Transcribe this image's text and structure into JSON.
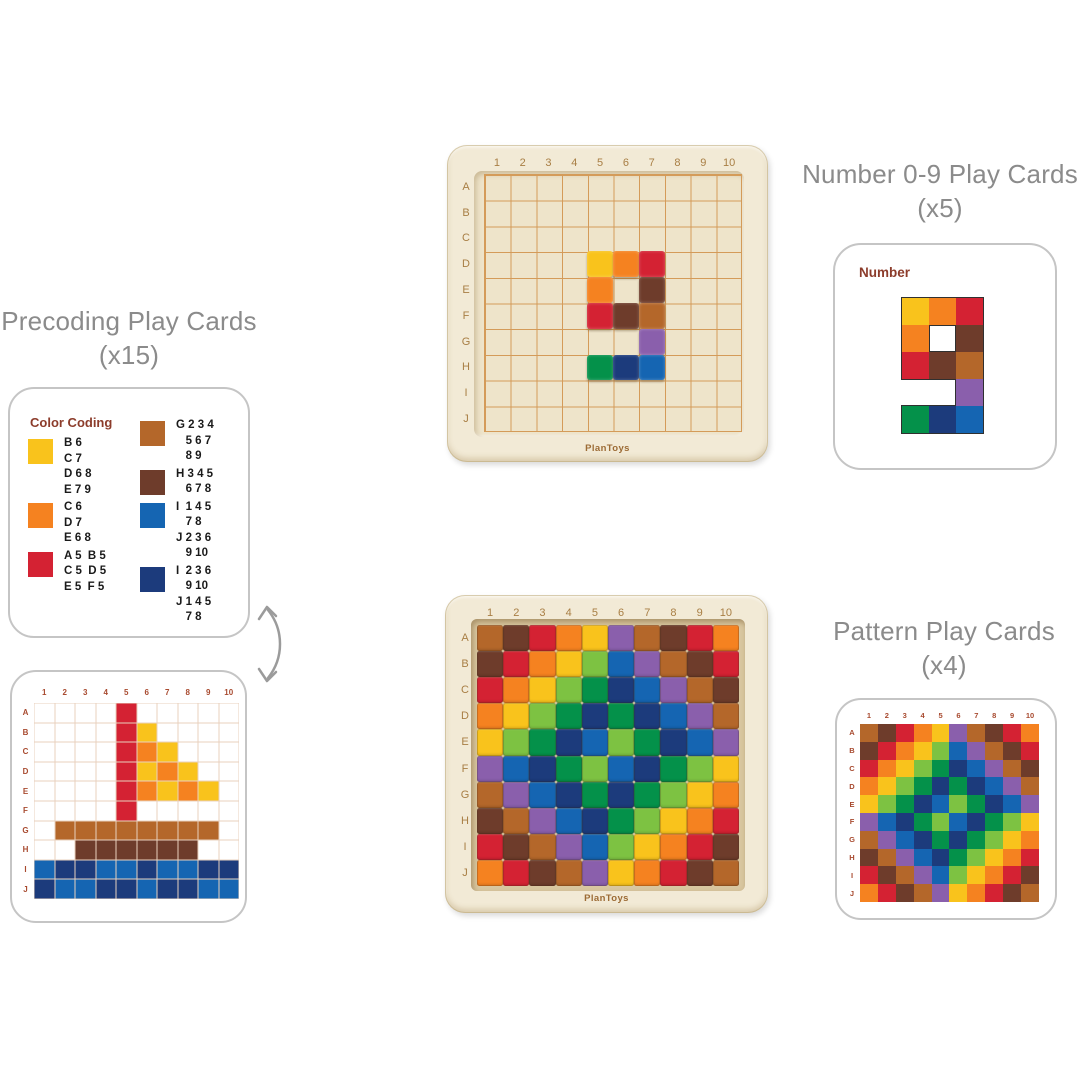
{
  "titles": {
    "precoding": {
      "line1": "Precoding Play Cards",
      "line2": "(x15)"
    },
    "number_cards": {
      "line1": "Number 0-9 Play Cards",
      "line2": "(x5)"
    },
    "pattern_cards": {
      "line1": "Pattern Play Cards",
      "line2": "(x4)"
    }
  },
  "brand": "PlanToys",
  "palette": {
    "BR": "#B4672A",
    "DB": "#6E3C2B",
    "RE": "#D42233",
    "OR": "#F58220",
    "YE": "#F9C31C",
    "LG": "#7DC242",
    "DG": "#04914A",
    "NV": "#1C3B7C",
    "BL": "#1565B2",
    "PU": "#8A5FAC"
  },
  "accent_colors": {
    "title_gray": "#8B8B8B",
    "card_label_maroon": "#8C3C2B",
    "mini_grid_label": "#A84A2F",
    "board_label_brown": "#A87E44",
    "board_cream": "#F2EAD6",
    "grid_line_tan": "#D49B59"
  },
  "board_labels": {
    "cols": [
      "1",
      "2",
      "3",
      "4",
      "5",
      "6",
      "7",
      "8",
      "9",
      "10"
    ],
    "rows": [
      "A",
      "B",
      "C",
      "D",
      "E",
      "F",
      "G",
      "H",
      "I",
      "J"
    ]
  },
  "color_coding_card": {
    "title": "Color Coding",
    "columns": {
      "left": [
        {
          "color": "YE",
          "lines": [
            "B 6",
            "C 7",
            "D 6 8",
            "E 7 9"
          ]
        },
        {
          "color": "OR",
          "lines": [
            "C 6",
            "D 7",
            "E 6 8"
          ]
        },
        {
          "color": "RE",
          "lines": [
            "A 5  B 5",
            "C 5  D 5",
            "E 5  F 5"
          ]
        }
      ],
      "right": [
        {
          "color": "BR",
          "lines": [
            "G 2 3 4",
            "   5 6 7",
            "   8 9"
          ]
        },
        {
          "color": "DB",
          "lines": [
            "H 3 4 5",
            "   6 7 8"
          ]
        },
        {
          "color": "BL",
          "lines": [
            "I  1 4 5",
            "   7 8",
            "J 2 3 6",
            "   9 10"
          ]
        },
        {
          "color": "NV",
          "lines": [
            "I  2 3 6",
            "   9 10",
            "J 1 4 5",
            "   7 8"
          ]
        }
      ]
    }
  },
  "sailboat_card": {
    "grid": [
      [
        "",
        "",
        "",
        "",
        "RE",
        "",
        "",
        "",
        "",
        ""
      ],
      [
        "",
        "",
        "",
        "",
        "RE",
        "YE",
        "",
        "",
        "",
        ""
      ],
      [
        "",
        "",
        "",
        "",
        "RE",
        "OR",
        "YE",
        "",
        "",
        ""
      ],
      [
        "",
        "",
        "",
        "",
        "RE",
        "YE",
        "OR",
        "YE",
        "",
        ""
      ],
      [
        "",
        "",
        "",
        "",
        "RE",
        "OR",
        "YE",
        "OR",
        "YE",
        ""
      ],
      [
        "",
        "",
        "",
        "",
        "RE",
        "",
        "",
        "",
        "",
        ""
      ],
      [
        "",
        "BR",
        "BR",
        "BR",
        "BR",
        "BR",
        "BR",
        "BR",
        "BR",
        ""
      ],
      [
        "",
        "",
        "DB",
        "DB",
        "DB",
        "DB",
        "DB",
        "DB",
        "",
        ""
      ],
      [
        "BL",
        "NV",
        "NV",
        "BL",
        "BL",
        "NV",
        "BL",
        "BL",
        "NV",
        "NV"
      ],
      [
        "NV",
        "BL",
        "BL",
        "NV",
        "NV",
        "BL",
        "NV",
        "NV",
        "BL",
        "BL"
      ]
    ]
  },
  "number_board": {
    "grid": [
      [
        "",
        "",
        "",
        "",
        "",
        "",
        "",
        "",
        "",
        ""
      ],
      [
        "",
        "",
        "",
        "",
        "",
        "",
        "",
        "",
        "",
        ""
      ],
      [
        "",
        "",
        "",
        "",
        "",
        "",
        "",
        "",
        "",
        ""
      ],
      [
        "",
        "",
        "",
        "",
        "YE",
        "OR",
        "RE",
        "",
        "",
        ""
      ],
      [
        "",
        "",
        "",
        "",
        "OR",
        "",
        "DB",
        "",
        "",
        ""
      ],
      [
        "",
        "",
        "",
        "",
        "RE",
        "DB",
        "BR",
        "",
        "",
        ""
      ],
      [
        "",
        "",
        "",
        "",
        "",
        "",
        "PU",
        "",
        "",
        ""
      ],
      [
        "",
        "",
        "",
        "",
        "DG",
        "NV",
        "BL",
        "",
        "",
        ""
      ],
      [
        "",
        "",
        "",
        "",
        "",
        "",
        "",
        "",
        "",
        ""
      ],
      [
        "",
        "",
        "",
        "",
        "",
        "",
        "",
        "",
        "",
        ""
      ]
    ]
  },
  "number_card": {
    "title": "Number",
    "grid": [
      [
        "YE",
        "OR",
        "RE"
      ],
      [
        "OR",
        "",
        "DB"
      ],
      [
        "RE",
        "DB",
        "BR"
      ],
      [
        "",
        "",
        "PU"
      ],
      [
        "DG",
        "NV",
        "BL"
      ]
    ]
  },
  "pattern_grid": [
    [
      "BR",
      "DB",
      "RE",
      "OR",
      "YE",
      "PU",
      "BR",
      "DB",
      "RE",
      "OR"
    ],
    [
      "DB",
      "RE",
      "OR",
      "YE",
      "LG",
      "BL",
      "PU",
      "BR",
      "DB",
      "RE"
    ],
    [
      "RE",
      "OR",
      "YE",
      "LG",
      "DG",
      "NV",
      "BL",
      "PU",
      "BR",
      "DB"
    ],
    [
      "OR",
      "YE",
      "LG",
      "DG",
      "NV",
      "DG",
      "NV",
      "BL",
      "PU",
      "BR"
    ],
    [
      "YE",
      "LG",
      "DG",
      "NV",
      "BL",
      "LG",
      "DG",
      "NV",
      "BL",
      "PU"
    ],
    [
      "PU",
      "BL",
      "NV",
      "DG",
      "LG",
      "BL",
      "NV",
      "DG",
      "LG",
      "YE"
    ],
    [
      "BR",
      "PU",
      "BL",
      "NV",
      "DG",
      "NV",
      "DG",
      "LG",
      "YE",
      "OR"
    ],
    [
      "DB",
      "BR",
      "PU",
      "BL",
      "NV",
      "DG",
      "LG",
      "YE",
      "OR",
      "RE"
    ],
    [
      "RE",
      "DB",
      "BR",
      "PU",
      "BL",
      "LG",
      "YE",
      "OR",
      "RE",
      "DB"
    ],
    [
      "OR",
      "RE",
      "DB",
      "BR",
      "PU",
      "YE",
      "OR",
      "RE",
      "DB",
      "BR"
    ]
  ]
}
